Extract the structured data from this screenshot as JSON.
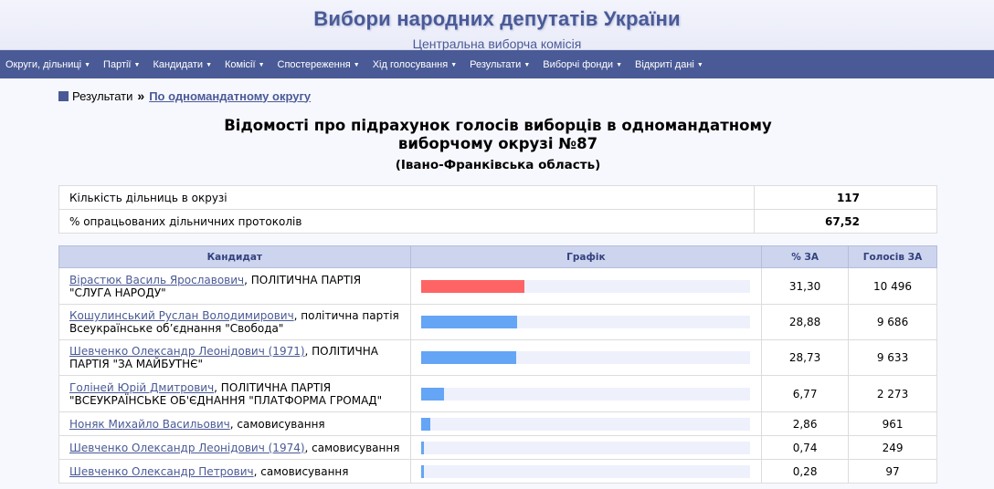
{
  "header": {
    "title": "Вибори народних депутатів України",
    "subtitle": "Центральна виборча комісія"
  },
  "nav": [
    {
      "label": "Округи, дільниці"
    },
    {
      "label": "Партії"
    },
    {
      "label": "Кандидати"
    },
    {
      "label": "Комісії"
    },
    {
      "label": "Спостереження"
    },
    {
      "label": "Хід голосування"
    },
    {
      "label": "Результати"
    },
    {
      "label": "Виборчі фонди"
    },
    {
      "label": "Відкриті дані"
    }
  ],
  "breadcrumb": {
    "root": "Результати",
    "separator": "»",
    "current": "По одномандатному округу"
  },
  "page": {
    "title_line1": "Відомості про підрахунок голосів виборців в одномандатному",
    "title_line2": "виборчому окрузі №87",
    "region": "(Івано-Франківська область)"
  },
  "stats": [
    {
      "label": "Кількість дільниць в окрузі",
      "value": "117"
    },
    {
      "label": "% опрацьованих дільничних протоколів",
      "value": "67,52"
    }
  ],
  "table": {
    "headers": {
      "candidate": "Кандидат",
      "chart": "Графік",
      "percent": "% ЗА",
      "votes": "Голосів ЗА"
    },
    "rows": [
      {
        "name": "Вірастюк Василь Ярославович",
        "affiliation": ", ПОЛІТИЧНА ПАРТІЯ \"СЛУГА НАРОДУ\"",
        "percent": "31,30",
        "votes": "10 496",
        "share": 31.3,
        "color": "#ff6464"
      },
      {
        "name": "Кошулинський Руслан Володимирович",
        "affiliation": ", політична партія Всеукраїнське об’єднання \"Свобода\"",
        "percent": "28,88",
        "votes": "9 686",
        "share": 28.88,
        "color": "#64a5f5"
      },
      {
        "name": "Шевченко Олександр Леонідович (1971)",
        "affiliation": ", ПОЛІТИЧНА ПАРТІЯ \"ЗА МАЙБУТНЄ\"",
        "percent": "28,73",
        "votes": "9 633",
        "share": 28.73,
        "color": "#64a5f5"
      },
      {
        "name": "Голіней Юрій Дмитрович",
        "affiliation": ", ПОЛІТИЧНА ПАРТІЯ \"ВСЕУКРАЇНСЬКЕ ОБ'ЄДНАННЯ \"ПЛАТФОРМА ГРОМАД\"",
        "percent": "6,77",
        "votes": "2 273",
        "share": 6.77,
        "color": "#64a5f5"
      },
      {
        "name": "Ноняк Михайло Васильович",
        "affiliation": ", самовисування",
        "percent": "2,86",
        "votes": "961",
        "share": 2.86,
        "color": "#64a5f5"
      },
      {
        "name": "Шевченко Олександр Леонідович (1974)",
        "affiliation": ", самовисування",
        "percent": "0,74",
        "votes": "249",
        "share": 0.74,
        "color": "#64a5f5"
      },
      {
        "name": "Шевченко Олександр Петрович",
        "affiliation": ", самовисування",
        "percent": "0,28",
        "votes": "97",
        "share": 0.28,
        "color": "#64a5f5"
      }
    ]
  }
}
